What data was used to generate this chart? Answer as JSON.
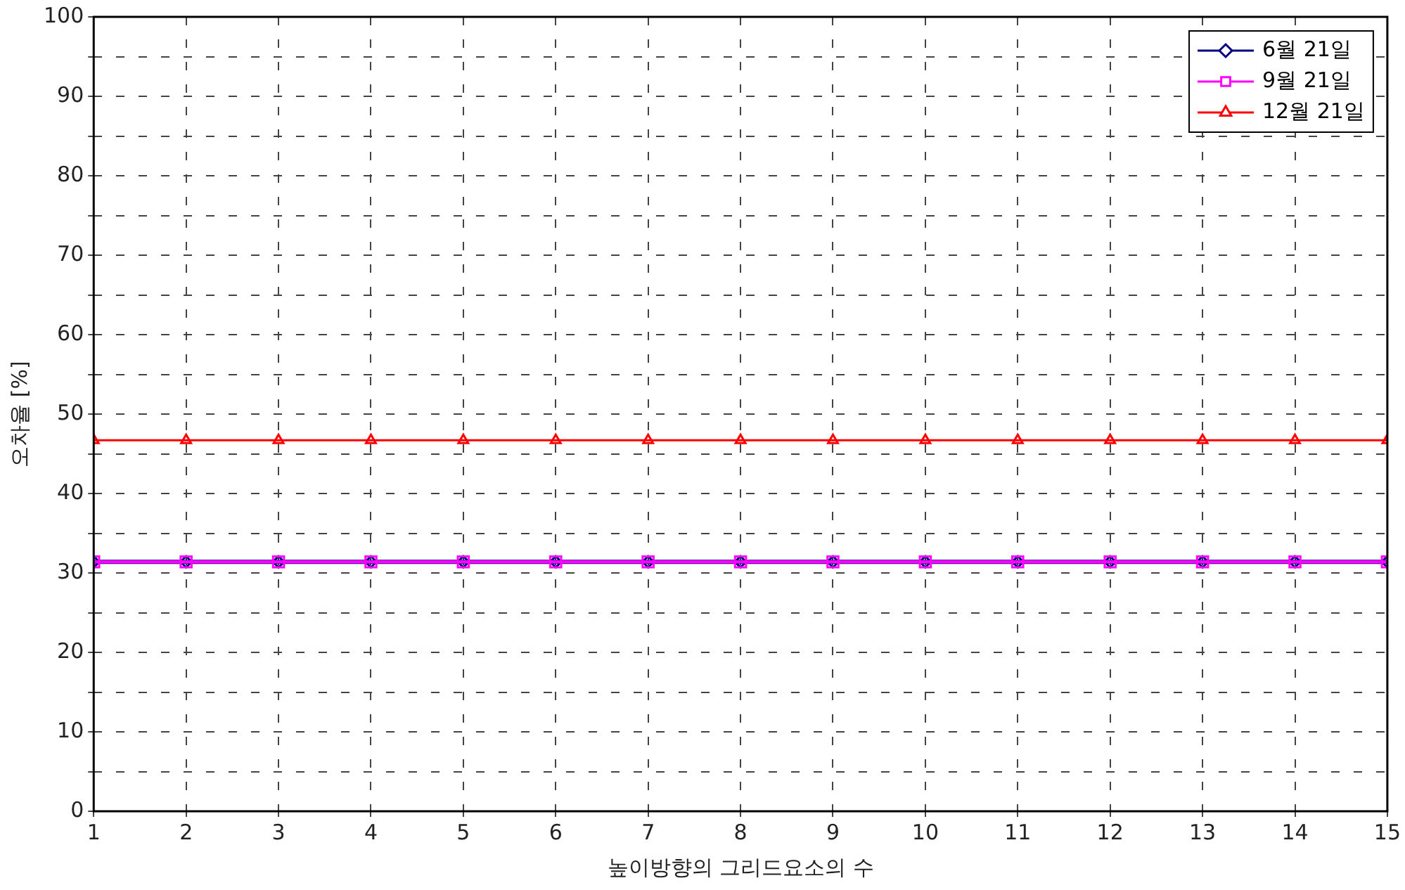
{
  "chart_data": {
    "type": "line",
    "xlabel": "높이방향의 그리드요소의 수",
    "ylabel": "오차율 [%]",
    "x": [
      1,
      2,
      3,
      4,
      5,
      6,
      7,
      8,
      9,
      10,
      11,
      12,
      13,
      14,
      15
    ],
    "series": [
      {
        "name": "6월 21일",
        "color": "#000080",
        "marker": "diamond",
        "values": [
          31.4,
          31.4,
          31.4,
          31.4,
          31.4,
          31.4,
          31.4,
          31.4,
          31.4,
          31.4,
          31.4,
          31.4,
          31.4,
          31.4,
          31.4
        ]
      },
      {
        "name": "9월 21일",
        "color": "#ff00ff",
        "marker": "square",
        "values": [
          31.4,
          31.4,
          31.4,
          31.4,
          31.4,
          31.4,
          31.4,
          31.4,
          31.4,
          31.4,
          31.4,
          31.4,
          31.4,
          31.4,
          31.4
        ]
      },
      {
        "name": "12월 21일",
        "color": "#ff0000",
        "marker": "triangle",
        "values": [
          46.7,
          46.7,
          46.7,
          46.7,
          46.7,
          46.7,
          46.7,
          46.7,
          46.7,
          46.7,
          46.7,
          46.7,
          46.7,
          46.7,
          46.7
        ]
      }
    ],
    "xlim": [
      1,
      15
    ],
    "xticks": [
      1,
      2,
      3,
      4,
      5,
      6,
      7,
      8,
      9,
      10,
      11,
      12,
      13,
      14,
      15
    ],
    "ylim": [
      0,
      100
    ],
    "yticks": [
      0,
      {
        "value": 5,
        "label": null
      },
      10,
      {
        "value": 15,
        "label": null
      },
      20,
      {
        "value": 25,
        "label": null
      },
      30,
      {
        "value": 35,
        "label": null
      },
      40,
      {
        "value": 45,
        "label": null
      },
      50,
      {
        "value": 55,
        "label": null
      },
      60,
      {
        "value": 65,
        "label": null
      },
      70,
      {
        "value": 75,
        "label": null
      },
      80,
      {
        "value": 85,
        "label": null
      },
      90,
      {
        "value": 95,
        "label": null
      },
      100
    ],
    "grid": true,
    "legend": "top right",
    "line_style": "solid"
  }
}
